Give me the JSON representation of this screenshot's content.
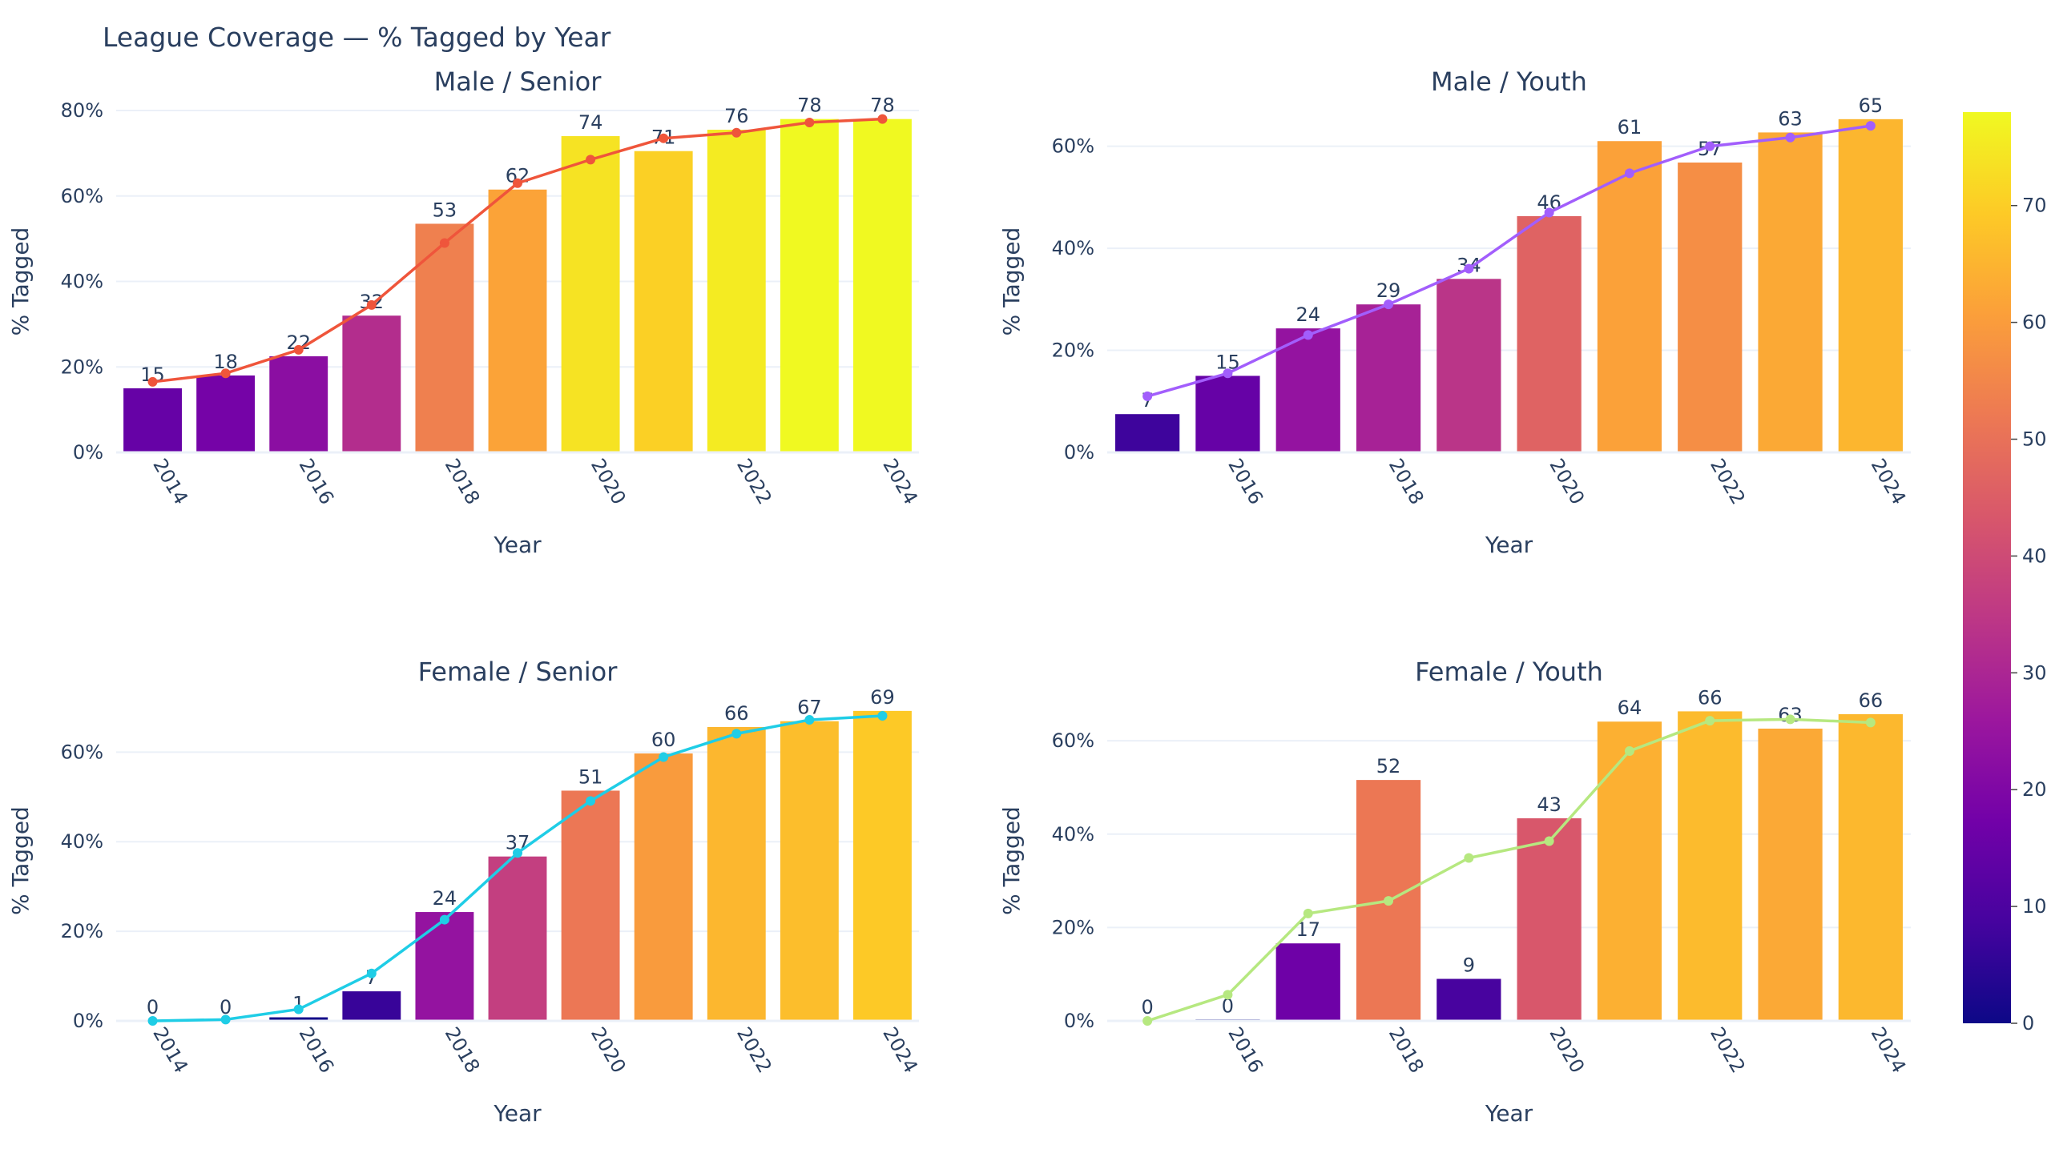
{
  "chart_data": {
    "title": "League Coverage — % Tagged by Year",
    "colorbar": {
      "colorscale": "Plasma",
      "range": [
        0,
        78
      ],
      "tick_values": [
        0,
        10,
        20,
        30,
        40,
        50,
        60,
        70
      ],
      "tick_labels": [
        "0",
        "10",
        "20",
        "30",
        "40",
        "50",
        "60",
        "70"
      ]
    },
    "colorscale_stops": [
      "#0d0887",
      "#46039f",
      "#7201a8",
      "#9c179e",
      "#bd3786",
      "#d8576b",
      "#ed7953",
      "#fb9f3a",
      "#fdca26",
      "#f0f921"
    ],
    "subplots": [
      {
        "type": "bar",
        "title": "Male / Senior",
        "xlabel": "Year",
        "ylabel": "% Tagged",
        "ylim": [
          0,
          80
        ],
        "y_ticks": [
          0,
          20,
          40,
          60,
          80
        ],
        "y_tick_labels": [
          "0%",
          "20%",
          "40%",
          "60%",
          "80%"
        ],
        "x_ticks": [
          2014,
          2016,
          2018,
          2020,
          2022,
          2024
        ],
        "x_tick_labels": [
          "2014",
          "2016",
          "2018",
          "2020",
          "2022",
          "2024"
        ],
        "xlim": [
          2013.5,
          2024.5
        ],
        "bars": {
          "x": [
            2014,
            2015,
            2016,
            2017,
            2018,
            2019,
            2020,
            2021,
            2022,
            2023,
            2024
          ],
          "values": [
            15,
            18,
            22.5,
            32,
            53.5,
            61.5,
            74,
            70.5,
            75.5,
            78,
            78
          ],
          "labels": [
            "15",
            "18",
            "22",
            "32",
            "53",
            "62",
            "74",
            "71",
            "76",
            "78",
            "78"
          ]
        },
        "trend": {
          "color": "#ef553b",
          "x": [
            2014,
            2015,
            2016,
            2017,
            2018,
            2019,
            2020,
            2021,
            2022,
            2023,
            2024
          ],
          "values": [
            16.5,
            18.5,
            24,
            34.5,
            49,
            63,
            68.5,
            73.5,
            74.8,
            77.2,
            78
          ]
        }
      },
      {
        "type": "bar",
        "title": "Male / Youth",
        "xlabel": "Year",
        "ylabel": "% Tagged",
        "ylim": [
          0,
          67
        ],
        "y_ticks": [
          0,
          20,
          40,
          60
        ],
        "y_tick_labels": [
          "0%",
          "20%",
          "40%",
          "60%"
        ],
        "x_ticks": [
          2016,
          2018,
          2020,
          2022,
          2024
        ],
        "x_tick_labels": [
          "2016",
          "2018",
          "2020",
          "2022",
          "2024"
        ],
        "xlim": [
          2014.5,
          2024.5
        ],
        "bars": {
          "x": [
            2015,
            2016,
            2017,
            2018,
            2019,
            2020,
            2021,
            2022,
            2023,
            2024
          ],
          "values": [
            7.5,
            15,
            24.3,
            29,
            34,
            46.3,
            61,
            56.8,
            62.7,
            65.3
          ],
          "labels": [
            "7",
            "15",
            "24",
            "29",
            "34",
            "46",
            "61",
            "57",
            "63",
            "65"
          ]
        },
        "trend": {
          "color": "#a25efc",
          "x": [
            2015,
            2016,
            2017,
            2018,
            2019,
            2020,
            2021,
            2022,
            2023,
            2024
          ],
          "values": [
            11,
            15.5,
            23,
            29,
            36,
            47,
            54.7,
            60,
            61.7,
            64
          ]
        }
      },
      {
        "type": "bar",
        "title": "Female / Senior",
        "xlabel": "Year",
        "ylabel": "% Tagged",
        "ylim": [
          0,
          71.5
        ],
        "y_ticks": [
          0,
          20,
          40,
          60
        ],
        "y_tick_labels": [
          "0%",
          "20%",
          "40%",
          "60%"
        ],
        "x_ticks": [
          2014,
          2016,
          2018,
          2020,
          2022,
          2024
        ],
        "x_tick_labels": [
          "2014",
          "2016",
          "2018",
          "2020",
          "2022",
          "2024"
        ],
        "xlim": [
          2013.5,
          2024.5
        ],
        "bars": {
          "x": [
            2014,
            2015,
            2016,
            2017,
            2018,
            2019,
            2020,
            2021,
            2022,
            2023,
            2024
          ],
          "values": [
            0,
            0,
            0.8,
            6.6,
            24.3,
            36.7,
            51.4,
            59.7,
            65.6,
            66.9,
            69.2
          ],
          "labels": [
            "0",
            "0",
            "1",
            "7",
            "24",
            "37",
            "51",
            "60",
            "66",
            "67",
            "69"
          ]
        },
        "trend": {
          "color": "#1fcde6",
          "x": [
            2014,
            2015,
            2016,
            2017,
            2018,
            2019,
            2020,
            2021,
            2022,
            2023,
            2024
          ],
          "values": [
            0,
            0.3,
            2.6,
            10.6,
            22.6,
            37.5,
            49.1,
            58.9,
            64.1,
            67.2,
            68.1
          ]
        }
      },
      {
        "type": "bar",
        "title": "Female / Youth",
        "xlabel": "Year",
        "ylabel": "% Tagged",
        "ylim": [
          0,
          68.6
        ],
        "y_ticks": [
          0,
          20,
          40,
          60
        ],
        "y_tick_labels": [
          "0%",
          "20%",
          "40%",
          "60%"
        ],
        "x_ticks": [
          2016,
          2018,
          2020,
          2022,
          2024
        ],
        "x_tick_labels": [
          "2016",
          "2018",
          "2020",
          "2022",
          "2024"
        ],
        "xlim": [
          2014.5,
          2024.5
        ],
        "bars": {
          "x": [
            2015,
            2016,
            2017,
            2018,
            2019,
            2020,
            2021,
            2022,
            2023,
            2024
          ],
          "values": [
            0,
            0.3,
            16.6,
            51.6,
            9,
            43.4,
            64.1,
            66.3,
            62.6,
            65.7
          ],
          "labels": [
            "0",
            "0",
            "17",
            "52",
            "9",
            "43",
            "64",
            "66",
            "63",
            "66"
          ]
        },
        "trend": {
          "color": "#b6e880",
          "x": [
            2015,
            2016,
            2017,
            2018,
            2019,
            2020,
            2021,
            2022,
            2023,
            2024
          ],
          "values": [
            0,
            5.6,
            23,
            25.7,
            34.9,
            38.5,
            57.8,
            64.3,
            64.6,
            63.9
          ]
        }
      }
    ]
  }
}
